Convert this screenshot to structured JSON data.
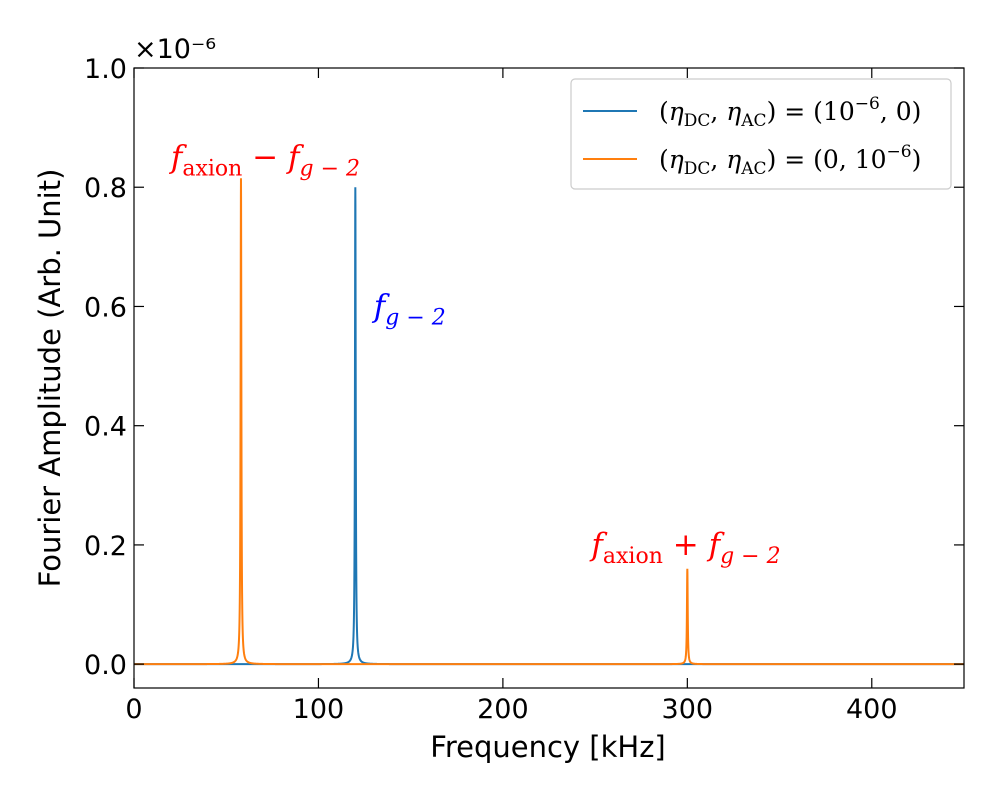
{
  "chart_data": {
    "type": "line",
    "xlabel": "Frequency [kHz]",
    "ylabel": "Fourier Amplitude (Arb. Unit)",
    "xlim": [
      0,
      450
    ],
    "ylim": [
      -0.04,
      1.0
    ],
    "y_multiplier": "×10⁻⁶",
    "x_ticks": [
      0,
      100,
      200,
      300,
      400
    ],
    "x_tick_labels": [
      "0",
      "100",
      "200",
      "300",
      "400"
    ],
    "y_ticks": [
      0.0,
      0.2,
      0.4,
      0.6,
      0.8,
      1.0
    ],
    "y_tick_labels": [
      "0.0",
      "0.2",
      "0.4",
      "0.6",
      "0.8",
      "1.0"
    ],
    "grid": false,
    "legend_position": "top-right",
    "series": [
      {
        "name": "(η_DC, η_AC) = (10⁻⁶, 0)",
        "color": "#1f77b4",
        "peaks": [
          {
            "x": 120,
            "amplitude": 0.8,
            "width": 0.25
          }
        ],
        "baseline": 0.0
      },
      {
        "name": "(η_DC, η_AC) = (0, 10⁻⁶)",
        "color": "#ff7f0e",
        "peaks": [
          {
            "x": 58,
            "amplitude": 0.815,
            "width": 0.25
          },
          {
            "x": 300,
            "amplitude": 0.16,
            "width": 0.25
          }
        ],
        "baseline": 0.0
      }
    ],
    "annotations": [
      {
        "label": "f_axion − f_g−2",
        "x": 20,
        "y": 0.85,
        "color": "#ff0000"
      },
      {
        "label": "f_g−2",
        "x": 130,
        "y": 0.6,
        "color": "#0000ff"
      },
      {
        "label": "f_axion + f_g−2",
        "x": 248,
        "y": 0.2,
        "color": "#ff0000"
      }
    ],
    "legend_labels": [
      {
        "pre": "(",
        "eta1": "η",
        "sub1": "DC",
        "mid": ", ",
        "eta2": "η",
        "sub2": "AC",
        "post": ") = (10",
        "sup": "−6",
        "tail": ", 0)"
      },
      {
        "pre": "(",
        "eta1": "η",
        "sub1": "DC",
        "mid": ", ",
        "eta2": "η",
        "sub2": "AC",
        "post": ") = (0, 10",
        "sup": "−6",
        "tail": ")"
      }
    ],
    "annotation_parts": {
      "f": "f",
      "axion": "axion",
      "g2": "g − 2",
      "minus": " − ",
      "plus": " + "
    }
  }
}
